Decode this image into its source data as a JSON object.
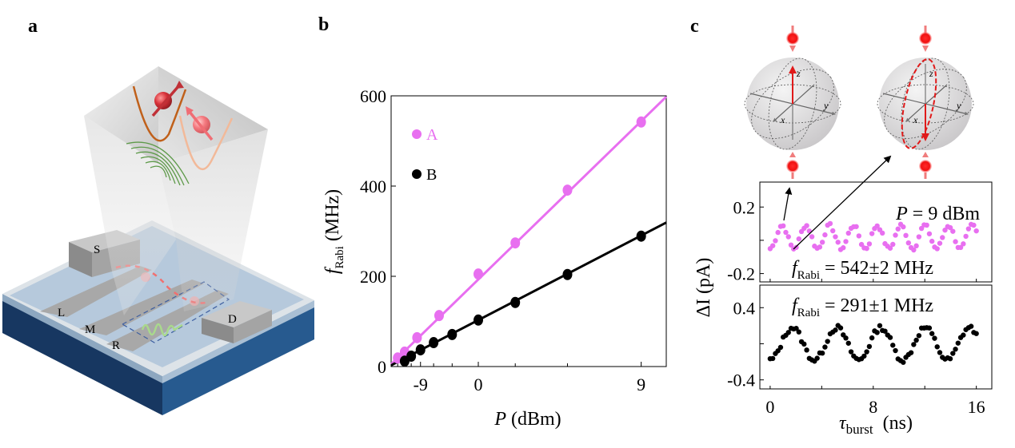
{
  "panels": {
    "a": {
      "label": "a",
      "device_labels": [
        "S",
        "L",
        "M",
        "R",
        "D"
      ],
      "colors": {
        "substrate_dark": "#1b3d66",
        "substrate_side": "#2a5d93",
        "surface": "#c7d6e6",
        "gate": "#b3b3b3",
        "spin_dark": "#d8323a",
        "spin_light": "#f57a80",
        "well_dark": "#c0601a",
        "well_light": "#f2b999",
        "wave": "#5e9a4a"
      }
    },
    "b": {
      "label": "b"
    },
    "c": {
      "label": "c",
      "bloch": {
        "axis_labels": [
          "z",
          "y",
          "x"
        ]
      },
      "top_annotation": "P = 9 dBm",
      "top_annotation_p": "P",
      "top_annotation_rest": " = 9 dBm",
      "top_fit_sub": "Rabi",
      "top_fit_value": " = 542±2 MHz",
      "bottom_fit_sub": "Rabi",
      "bottom_fit_value": " = 291±1 MHz",
      "fit_symbol": "f"
    }
  },
  "chart_data": [
    {
      "id": "panel-b",
      "type": "scatter",
      "title": "",
      "xlabel": "P (dBm)",
      "xlabel_italic": "P",
      "xlabel_unit": " (dBm)",
      "ylabel": "f_Rabi (MHz)",
      "ylabel_symbol": "f",
      "ylabel_sub": "Rabi",
      "ylabel_unit": " (MHz)",
      "x_scale": "amplitude (10^(P/20))",
      "xticks": [
        -9,
        0,
        9
      ],
      "xtick_labels": [
        "-9",
        "0",
        "9"
      ],
      "minor_xticks": [
        -20,
        -15,
        -12,
        -6,
        -3,
        3,
        6
      ],
      "yticks": [
        0,
        200,
        400,
        600
      ],
      "ytick_labels": [
        "0",
        "200",
        "400",
        "600"
      ],
      "ylim": [
        0,
        600
      ],
      "legend": {
        "placement": "top-left",
        "entries": [
          "A",
          "B"
        ]
      },
      "series": [
        {
          "name": "A",
          "color": "#e86ff0",
          "x": [
            -20,
            -15,
            -10,
            -5,
            0,
            3,
            6,
            9
          ],
          "y": [
            19,
            32,
            64,
            113,
            205,
            274,
            391,
            542
          ],
          "fit_slope_per_amp": 193
        },
        {
          "name": "B",
          "color": "#000000",
          "x": [
            -15,
            -12,
            -9,
            -6,
            -3,
            0,
            3,
            6,
            9
          ],
          "y": [
            12,
            23,
            37,
            53,
            71,
            103,
            142,
            204,
            289
          ],
          "fit_slope_per_amp": 103
        }
      ]
    },
    {
      "id": "panel-c-top",
      "type": "scatter",
      "ylabel": "ΔI (pA)",
      "yticks": [
        -0.2,
        0.2
      ],
      "ytick_labels": [
        "-0.2",
        "0.2"
      ],
      "ylim": [
        -0.25,
        0.35
      ],
      "xlim": [
        -0.8,
        17.2
      ],
      "annotation": "P = 9 dBm; f_Rabi = 542±2 MHz",
      "series": [
        {
          "name": "A",
          "color": "#e86ff0",
          "freq_MHz": 542,
          "offset": 0.02,
          "amplitude": 0.07,
          "x_range": [
            0,
            16
          ],
          "n_points": 80
        }
      ]
    },
    {
      "id": "panel-c-bottom",
      "type": "scatter",
      "xlabel": "τ_burst (ns)",
      "xlabel_symbol": "τ",
      "xlabel_sub": "burst",
      "xlabel_unit": " (ns)",
      "xticks": [
        0,
        8,
        16
      ],
      "xtick_labels": [
        "0",
        "8",
        "16"
      ],
      "yticks": [
        -0.4,
        0.4
      ],
      "ytick_labels": [
        "-0.4",
        "0.4"
      ],
      "ylim": [
        -0.5,
        0.65
      ],
      "xlim": [
        -0.8,
        17.2
      ],
      "annotation": "f_Rabi = 291±1 MHz",
      "series": [
        {
          "name": "B",
          "color": "#000000",
          "freq_MHz": 291,
          "offset": 0.0,
          "amplitude": 0.18,
          "x_range": [
            0,
            16
          ],
          "n_points": 80
        }
      ]
    }
  ]
}
